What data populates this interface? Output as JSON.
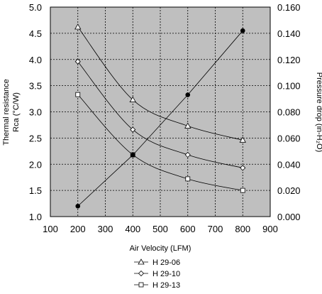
{
  "chart_data": {
    "type": "line",
    "title": "",
    "xlabel": "Air Velocity (LFM)",
    "ylabel_left_line1": "Thermal resistance",
    "ylabel_left_line2": "Rca (°C/W)",
    "ylabel_right": "Pressure drop  (in-H₂O)",
    "xlim": [
      100,
      900
    ],
    "ylim_left": [
      1.0,
      5.0
    ],
    "ylim_right": [
      0.0,
      0.16
    ],
    "x_ticks": [
      "100",
      "200",
      "300",
      "400",
      "500",
      "600",
      "700",
      "800",
      "900"
    ],
    "y_left_ticks": [
      "1.0",
      "1.5",
      "2.0",
      "2.5",
      "3.0",
      "3.5",
      "4.0",
      "4.5",
      "5.0"
    ],
    "y_right_ticks": [
      "0.000",
      "0.020",
      "0.040",
      "0.060",
      "0.080",
      "0.100",
      "0.120",
      "0.140",
      "0.160"
    ],
    "grid": true,
    "plot_background": "#bfbfbf",
    "x": [
      200,
      400,
      600,
      800
    ],
    "series": [
      {
        "name": "H 29-06",
        "marker": "triangle",
        "axis": "left",
        "values": [
          4.62,
          3.23,
          2.73,
          2.46
        ]
      },
      {
        "name": "H 29-10",
        "marker": "diamond",
        "axis": "left",
        "values": [
          3.96,
          2.66,
          2.18,
          1.93
        ]
      },
      {
        "name": "H 29-13",
        "marker": "square",
        "axis": "left",
        "values": [
          3.33,
          2.18,
          1.72,
          1.5
        ]
      },
      {
        "name": "",
        "marker": "filled-circle",
        "axis": "right",
        "values": [
          0.008,
          0.047,
          0.093,
          0.142
        ]
      }
    ],
    "legend_position": "bottom-center"
  }
}
